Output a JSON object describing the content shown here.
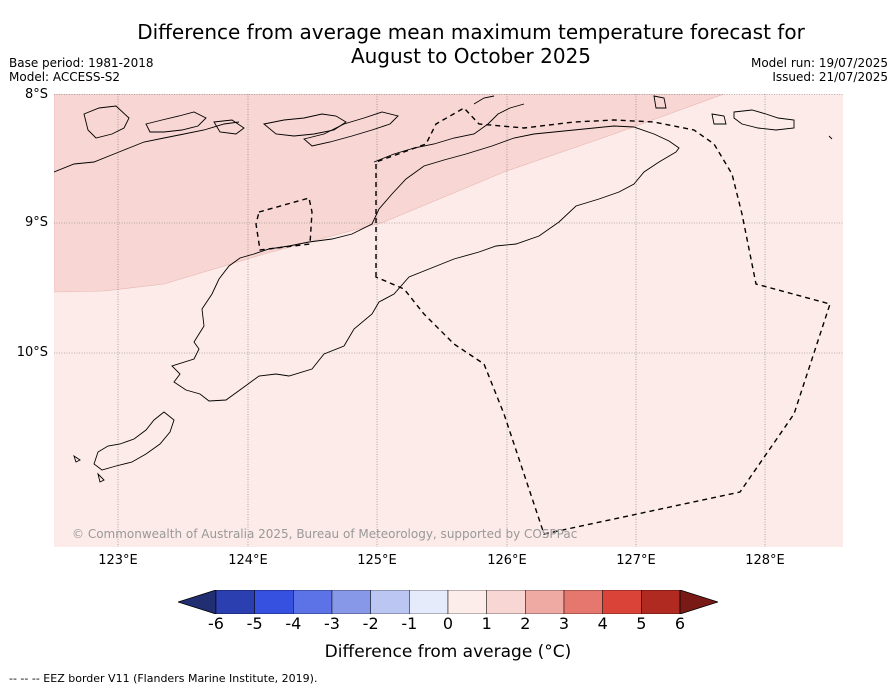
{
  "title_line1": "Difference from average mean maximum temperature forecast for",
  "title_line2": "August to October 2025",
  "base_period": "Base period: 1981-2018",
  "model": "Model: ACCESS-S2",
  "model_run": "Model run: 19/07/2025",
  "issued": "Issued: 21/07/2025",
  "lat_labels": [
    "8°S",
    "9°S",
    "10°S"
  ],
  "lon_labels": [
    "123°E",
    "124°E",
    "125°E",
    "126°E",
    "127°E",
    "128°E"
  ],
  "copyright": "© Commonwealth of Australia 2025, Bureau of Meteorology, supported by COSPPac",
  "colorbar": {
    "ticks": [
      "-6",
      "-5",
      "-4",
      "-3",
      "-2",
      "-1",
      "0",
      "1",
      "2",
      "3",
      "4",
      "5",
      "6"
    ],
    "colors": [
      "#212e72",
      "#2b3fb0",
      "#3650e0",
      "#5b73e6",
      "#8798e9",
      "#bcc6f3",
      "#e6ebfb",
      "#fcecea",
      "#f8d6d3",
      "#eeaaa3",
      "#e5776e",
      "#da4438",
      "#b02a22",
      "#7a1a16"
    ],
    "label": "Difference from average (°C)"
  },
  "map_fill_colors": {
    "light": "#fcebe8",
    "medium": "#f7d6d3"
  },
  "footnote": "--  --  -- EEZ border V11 (Flanders Marine Institute, 2019)."
}
